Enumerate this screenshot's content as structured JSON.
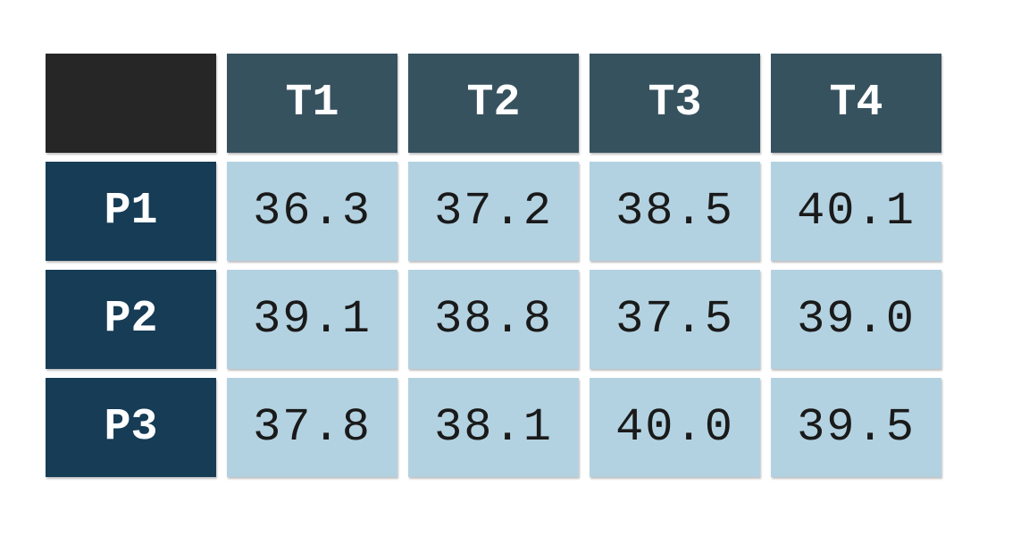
{
  "chart_data": {
    "type": "table",
    "title": "",
    "corner_label": "",
    "columns": [
      "T1",
      "T2",
      "T3",
      "T4"
    ],
    "rows": [
      {
        "label": "P1",
        "values": [
          "36.3",
          "37.2",
          "38.5",
          "40.1"
        ]
      },
      {
        "label": "P2",
        "values": [
          "39.1",
          "38.8",
          "37.5",
          "39.0"
        ]
      },
      {
        "label": "P3",
        "values": [
          "37.8",
          "38.1",
          "40.0",
          "39.5"
        ]
      }
    ]
  },
  "colors": {
    "corner": "#262626",
    "column_header": "#37525f",
    "row_header": "#163c56",
    "value_cell": "#b3d2e1",
    "header_text": "#ffffff",
    "value_text": "#1a1a1a"
  }
}
